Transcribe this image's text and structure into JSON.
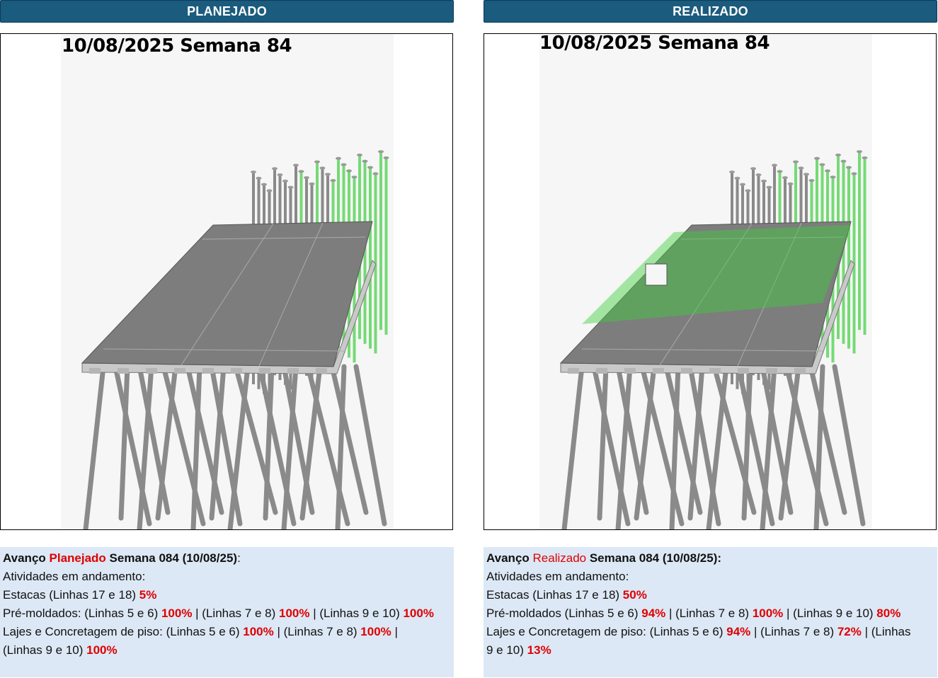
{
  "planned": {
    "header": "PLANEJADO",
    "date_label": "10/08/2025 Semana 84",
    "text": {
      "title_prefix": "Avanço ",
      "title_highlight": "Planejado",
      "title_suffix": " Semana 084 (10/08/25)",
      "title_colon": ":",
      "line_activities": "Atividades em andamento:",
      "estacas_label": "Estacas (Linhas 17 e 18) ",
      "estacas_value": "5%",
      "premold_label": "Pré-moldados: (Linhas 5 e 6) ",
      "premold_v1": "100%",
      "premold_sep1": " | (Linhas 7 e 8) ",
      "premold_v2": "100%",
      "premold_sep2": " | (Linhas 9 e 10) ",
      "premold_v3": "100%",
      "lajes_label": "Lajes e Concretagem de piso: (Linhas 5 e 6) ",
      "lajes_v1": "100%",
      "lajes_sep1": " | (Linhas 7 e 8) ",
      "lajes_v2": "100%",
      "lajes_sep2": " |",
      "lajes_line2": "(Linhas 9 e 10) ",
      "lajes_v3": "100%"
    }
  },
  "realized": {
    "header": "REALIZADO",
    "date_label": "10/08/2025 Semana 84",
    "text": {
      "title_prefix": "Avanço ",
      "title_highlight": "Realizado",
      "title_suffix": " Semana 084 (10/08/25):",
      "line_activities": "Atividades em andamento:",
      "estacas_label": "Estacas (Linhas 17 e 18) ",
      "estacas_value": "50%",
      "premold_label": "Pré-moldados (Linhas 5 e 6) ",
      "premold_v1": "94%",
      "premold_sep1": " | (Linhas 7 e 8) ",
      "premold_v2": "100%",
      "premold_sep2": " | (Linhas 9 e 10) ",
      "premold_v3": "80%",
      "lajes_label": "Lajes e Concretagem de piso: (Linhas 5 e 6) ",
      "lajes_v1": "94%",
      "lajes_sep1": " | (Linhas 7 e 8) ",
      "lajes_v2": "72%",
      "lajes_sep2": " | (Linhas",
      "lajes_line2": "9 e 10) ",
      "lajes_v3": "13%"
    }
  },
  "colors": {
    "header_bg": "#1a5b7e",
    "panel_bg": "#dce8f5",
    "highlight": "#e00000",
    "structure": "#8a8a8a",
    "in_progress": "#3ecf3e"
  }
}
